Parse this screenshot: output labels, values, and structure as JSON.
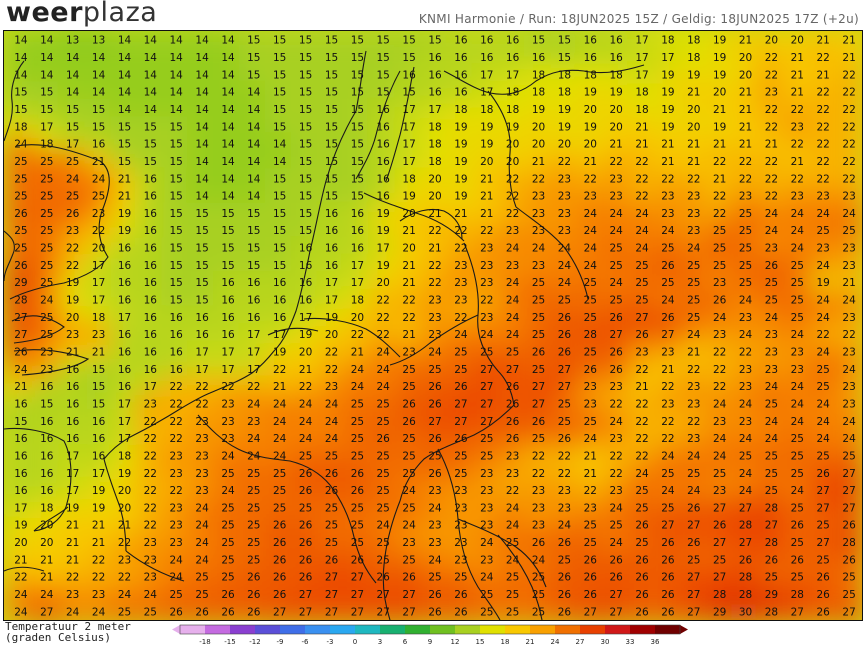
{
  "header": {
    "logo_bold": "weer",
    "logo_light": "plaza",
    "run_info": "KNMI Harmonie / Run: 18JUN2025 15Z / Geldig: 18JUN2025 17Z (+2u)"
  },
  "legend": {
    "title_line1": "Temperatuur 2 meter",
    "title_line2": "(graden Celsius)",
    "ticks": [
      "-18",
      "-15",
      "-12",
      "-9",
      "-6",
      "-3",
      "0",
      "3",
      "6",
      "9",
      "12",
      "15",
      "18",
      "21",
      "24",
      "27",
      "30",
      "33",
      "36"
    ],
    "colors": [
      "#e6b0ec",
      "#c46be0",
      "#8a3fd0",
      "#5b4fd8",
      "#3f6ee8",
      "#3a90f0",
      "#2aa8f0",
      "#1fb8c0",
      "#18b070",
      "#30b030",
      "#70c020",
      "#a8d020",
      "#e0e000",
      "#f8c800",
      "#f8a000",
      "#f07000",
      "#e84000",
      "#d01818",
      "#a00000",
      "#700000"
    ]
  },
  "map": {
    "rows": [
      "14 14 13 13 14 14 14 14 14 15 15 15 15 15 15 15 15 16 16 16 15 15 16 16 17 18 18 19 21 20 20 21 21",
      "14 14 14 14 14 14 14 14 14 15 15 15 15 15 15 15 16 16 16 16 16 15 16 16 17 17 18 19 20 22 21 22 21",
      "14 14 14 14 14 14 14 14 14 15 15 15 15 15 15 16 16 16 17 17 18 18 18 18 17 19 19 19 20 22 21 21 22",
      "15 15 14 14 14 14 14 14 14 14 15 15 15 15 15 15 16 16 17 18 18 18 19 19 18 19 21 20 21 23 21 22 22",
      "15 15 15 15 14 14 14 14 14 14 15 15 15 15 16 17 17 18 18 18 19 19 20 20 18 19 20 21 21 22 22 22 22",
      "18 17 15 15 15 15 15 14 14 14 15 15 15 15 16 17 18 19 19 19 20 19 19 20 21 19 20 19 21 22 23 22 22",
      "24 18 17 16 15 15 15 14 14 14 14 15 15 15 16 17 18 19 19 20 20 20 20 21 21 21 21 21 21 21 22 22 22",
      "25 25 25 21 15 15 15 14 14 14 14 15 15 15 16 17 18 19 20 20 21 22 21 22 22 21 21 22 22 22 21 22 22",
      "25 25 24 24 21 16 15 14 14 14 15 15 15 15 16 18 20 19 21 22 22 23 22 23 22 22 22 21 22 22 22 22 22",
      "25 25 25 25 21 16 15 14 14 14 15 15 15 15 16 19 20 19 21 22 23 23 23 23 22 23 23 22 23 22 23 23 23",
      "26 25 26 23 19 16 15 15 15 15 15 15 16 16 19 20 21 21 21 22 23 23 24 24 24 23 23 22 25 24 24 24 24",
      "25 25 23 22 19 16 15 15 15 15 15 15 16 16 19 21 22 22 22 23 23 23 24 24 24 24 23 25 25 24 24 25 25",
      "25 25 22 20 16 16 15 15 15 15 15 16 16 16 17 20 21 22 23 24 24 24 24 25 24 25 24 25 25 23 24 23 23",
      "26 25 22 17 16 16 15 15 15 15 15 16 16 17 19 21 22 23 23 23 23 24 24 25 25 26 25 25 25 26 25 24 23",
      "29 25 19 17 16 16 15 15 16 16 16 16 17 17 20 21 22 23 23 24 25 24 25 24 25 25 25 23 25 25 25 19 21",
      "28 24 19 17 16 16 15 15 16 16 16 16 17 18 22 22 23 23 22 24 25 25 25 25 25 24 25 26 24 25 25 24 24",
      "27 25 20 18 17 16 16 16 16 16 16 17 19 20 22 22 23 22 23 24 25 26 25 26 27 26 25 24 23 24 25 24 23",
      "27 25 23 23 16 16 16 16 16 17 17 19 20 22 22 21 23 24 24 24 25 26 28 27 26 27 24 23 24 23 24 22 22",
      "26 23 21 21 16 16 16 17 17 17 19 20 22 21 24 23 24 25 25 25 26 26 25 26 23 23 21 22 22 23 23 24 23",
      "24 23 16 15 16 16 16 17 17 17 22 21 22 24 24 25 25 25 27 27 25 27 26 26 22 21 22 22 23 23 23 25 24",
      "21 16 16 15 16 17 22 22 22 22 21 22 23 24 24 25 26 26 27 26 27 27 23 23 21 22 23 22 23 24 24 25 23",
      "16 15 16 15 17 23 22 22 23 24 24 24 24 25 25 26 26 27 27 26 27 25 23 22 22 23 23 24 24 25 24 24 23",
      "15 16 16 16 17 22 22 23 23 23 24 24 24 25 25 26 27 27 27 26 26 25 25 24 22 22 22 23 23 24 24 24 24",
      "16 16 16 16 17 22 22 23 23 24 24 24 24 25 26 25 26 26 25 26 25 26 24 23 22 22 23 24 24 24 25 24 24",
      "16 16 17 16 18 22 23 23 24 24 24 25 25 25 25 25 25 25 25 23 22 22 21 22 22 24 24 24 25 25 25 25 25",
      "16 16 17 17 19 22 23 23 25 25 25 26 26 26 25 25 26 25 23 23 22 22 21 22 24 25 25 25 24 25 25 26 27",
      "16 16 17 19 20 22 22 23 24 25 25 26 26 26 25 24 23 23 23 22 23 23 22 23 25 24 24 23 24 25 24 27 27",
      "17 18 19 19 20 22 23 24 25 25 25 25 25 25 25 25 24 23 23 24 23 23 23 24 25 25 26 27 27 28 25 27 27",
      "19 20 21 21 21 22 23 24 25 25 26 26 25 25 24 24 23 23 23 24 23 24 25 25 26 27 27 26 28 27 26 25 26",
      "20 20 21 21 22 23 23 24 25 25 26 26 25 25 25 23 23 23 24 25 26 26 25 24 25 26 26 27 27 28 25 27 28",
      "21 21 21 22 23 23 24 24 25 25 26 26 26 26 25 25 24 23 23 24 24 25 26 26 26 26 25 25 26 26 26 25 26",
      "22 21 22 22 22 23 24 25 25 26 26 26 27 27 26 26 25 25 24 25 25 26 26 26 26 26 27 27 28 25 25 26 25",
      "24 24 23 23 24 24 25 25 26 26 26 27 27 27 27 27 26 26 25 25 25 26 26 27 26 26 27 28 28 29 28 26 25",
      "24 27 24 24 25 25 26 26 26 26 27 27 27 27 27 27 26 26 25 25 25 26 27 27 26 26 27 29 30 28 27 26 27"
    ]
  }
}
